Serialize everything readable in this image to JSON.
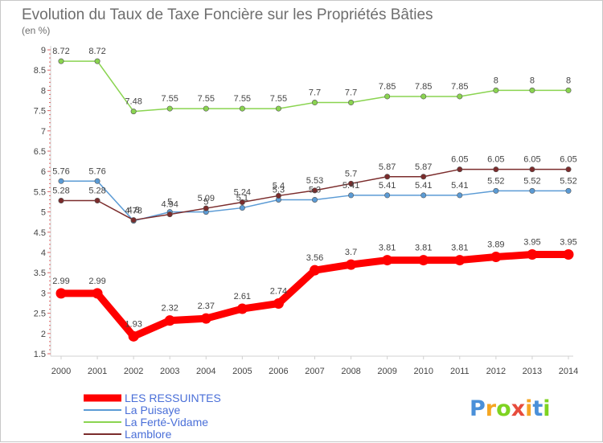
{
  "chart_data": {
    "type": "line",
    "title": "Evolution du Taux de Taxe Foncière sur les Propriétés Bâties",
    "ylabel": "(en %)",
    "xlabel": "",
    "ylim": [
      1.5,
      9
    ],
    "y_ticks": [
      "1.5",
      "2",
      "2.5",
      "3",
      "3.5",
      "4",
      "4.5",
      "5",
      "5.5",
      "6",
      "6.5",
      "7",
      "7.5",
      "8",
      "8.5",
      "9"
    ],
    "categories": [
      "2000",
      "2001",
      "2002",
      "2003",
      "2004",
      "2005",
      "2006",
      "2007",
      "2008",
      "2009",
      "2010",
      "2011",
      "2012",
      "2013",
      "2014"
    ],
    "series": [
      {
        "name": "LES RESSUINTES",
        "color": "#ff0000",
        "values": [
          2.99,
          2.99,
          1.93,
          2.32,
          2.37,
          2.61,
          2.74,
          3.56,
          3.7,
          3.81,
          3.81,
          3.81,
          3.89,
          3.95,
          3.95
        ],
        "labels": [
          "2.99",
          "2.99",
          "1.93",
          "2.32",
          "2.37",
          "2.61",
          "2.74",
          "3.56",
          "3.7",
          "3.81",
          "3.81",
          "3.81",
          "3.89",
          "3.95",
          "3.95"
        ]
      },
      {
        "name": "La Puisaye",
        "color": "#5b9bd5",
        "values": [
          5.76,
          5.76,
          4.78,
          5.0,
          5.0,
          5.1,
          5.3,
          5.3,
          5.41,
          5.41,
          5.41,
          5.41,
          5.52,
          5.52,
          5.52
        ],
        "labels": [
          "5.76",
          "5.76",
          "4.78",
          "5",
          "5",
          "5.1",
          "5.3",
          "5.3",
          "5.41",
          "5.41",
          "5.41",
          "5.41",
          "5.52",
          "5.52",
          "5.52"
        ]
      },
      {
        "name": "La Ferté-Vidame",
        "color": "#8ad450",
        "values": [
          8.72,
          8.72,
          7.48,
          7.55,
          7.55,
          7.55,
          7.55,
          7.7,
          7.7,
          7.85,
          7.85,
          7.85,
          8.0,
          8.0,
          8.0
        ],
        "labels": [
          "8.72",
          "8.72",
          "7.48",
          "7.55",
          "7.55",
          "7.55",
          "7.55",
          "7.7",
          "7.7",
          "7.85",
          "7.85",
          "7.85",
          "8",
          "8",
          "8"
        ]
      },
      {
        "name": "Lamblore",
        "color": "#7b2c2c",
        "values": [
          5.28,
          5.28,
          4.8,
          4.94,
          5.09,
          5.24,
          5.4,
          5.53,
          5.7,
          5.87,
          5.87,
          6.05,
          6.05,
          6.05,
          6.05
        ],
        "labels": [
          "5.28",
          "5.28",
          "4.8",
          "4.94",
          "5.09",
          "5.24",
          "5.4",
          "5.53",
          "5.7",
          "5.87",
          "5.87",
          "6.05",
          "6.05",
          "6.05",
          "6.05"
        ]
      }
    ],
    "legend_position": "bottom-left",
    "grid": false
  },
  "logo": {
    "letters": [
      "P",
      "r",
      "o",
      "x",
      "i",
      "t",
      "i"
    ],
    "colors": [
      "#4a90d9",
      "#f5a623",
      "#7ed321",
      "#e74c3c",
      "#f5a623",
      "#4a90d9",
      "#7ed321"
    ]
  }
}
